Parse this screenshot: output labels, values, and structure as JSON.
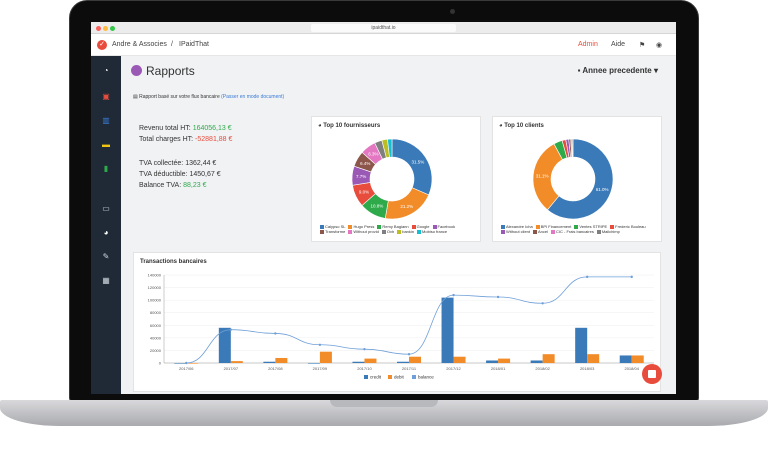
{
  "browser": {
    "url": "ipaidthat.io"
  },
  "navbar": {
    "company": "Andre & Associes",
    "separator": "/",
    "app": "IPaidThat",
    "admin": "Admin",
    "aide": "Aide"
  },
  "page": {
    "title": "Rapports",
    "period": "Annee precedente",
    "info": "Rapport basé sur votre flux bancaire",
    "info_link": "(Passer en mode document)"
  },
  "summary": {
    "revenu_label": "Revenu total HT:",
    "revenu_value": "164056,13 €",
    "charges_label": "Total charges HT:",
    "charges_value": "-52881,88 €",
    "tva_collectee_label": "TVA collectée:",
    "tva_collectee_value": "1362,44 €",
    "tva_deductible_label": "TVA déductible:",
    "tva_deductible_value": "1450,67 €",
    "balance_label": "Balance TVA:",
    "balance_value": "88,23 €"
  },
  "fournisseurs": {
    "title": "Top 10 fournisseurs",
    "legend": [
      "Calypso SL",
      "Hugo Press",
      "Remy Bagiann",
      "Google",
      "Facebook",
      "Transforme",
      "Without provid",
      "Ovh",
      "bankin",
      "Mobiso france"
    ]
  },
  "clients": {
    "title": "Top 10 clients",
    "legend": [
      "Alexandre Icha",
      "BPI Financement",
      "Ventes STRIPE",
      "Frederic Bouleau",
      "Without client",
      "Ancel",
      "CIC - Frais bancaires",
      "Mailchimp"
    ]
  },
  "transactions": {
    "title": "Transactions bancaires"
  },
  "colors": {
    "blue": "#3a7ab8",
    "orange": "#f28c28",
    "green": "#2eaa4a",
    "red": "#e74c3c",
    "purple": "#9b59b6",
    "pink": "#e377c2",
    "olive": "#bcbd22",
    "gray": "#7f7f7f",
    "cyan": "#17becf",
    "brown": "#8c564b",
    "teal": "#1abc9c"
  },
  "chart_data": [
    {
      "type": "pie",
      "title": "Top 10 fournisseurs",
      "categories": [
        "Calypso SL",
        "Hugo Press",
        "Remy Bagiann",
        "Google",
        "Facebook",
        "Transforme",
        "Without provid",
        "Ovh",
        "bankin",
        "Mobiso france"
      ],
      "values": [
        31.5,
        21.2,
        10.8,
        9.0,
        7.7,
        6.4,
        6.3,
        3.0,
        2.3,
        1.8
      ],
      "labels": [
        "31.5%",
        "21.2%",
        "10.8%",
        "9.0%",
        "7.7%",
        "6.4%",
        "6.3%",
        "",
        "",
        ""
      ]
    },
    {
      "type": "pie",
      "title": "Top 10 clients",
      "categories": [
        "Alexandre Icha",
        "BPI Financement",
        "Ventes STRIPE",
        "Frederic Bouleau",
        "Without client",
        "Ancel",
        "CIC - Frais bancaires",
        "Mailchimp"
      ],
      "values": [
        61.0,
        31.1,
        3.5,
        1.5,
        1.2,
        0.8,
        0.5,
        0.4
      ],
      "labels": [
        "61.0%",
        "31.1%",
        "",
        "",
        "",
        "",
        "",
        ""
      ]
    },
    {
      "type": "bar",
      "title": "Transactions bancaires",
      "categories": [
        "2017/06",
        "2017/07",
        "2017/08",
        "2017/09",
        "2017/10",
        "2017/11",
        "2017/12",
        "2018/01",
        "2018/02",
        "2018/03",
        "2018/04"
      ],
      "series": [
        {
          "name": "credit",
          "values": [
            0,
            56000,
            2000,
            0,
            2000,
            2000,
            104000,
            4000,
            4000,
            56000,
            12000
          ]
        },
        {
          "name": "debit",
          "values": [
            0,
            3000,
            8000,
            18000,
            7000,
            10000,
            10000,
            7000,
            14000,
            14000,
            12000
          ]
        },
        {
          "name": "balance",
          "values": [
            0,
            53000,
            47000,
            29000,
            22000,
            14000,
            108000,
            105000,
            95000,
            137000,
            137000
          ]
        }
      ],
      "ylim": [
        0,
        140000
      ],
      "yticks": [
        "0",
        "20000",
        "40000",
        "60000",
        "80000",
        "100000",
        "120000",
        "140000"
      ]
    }
  ]
}
